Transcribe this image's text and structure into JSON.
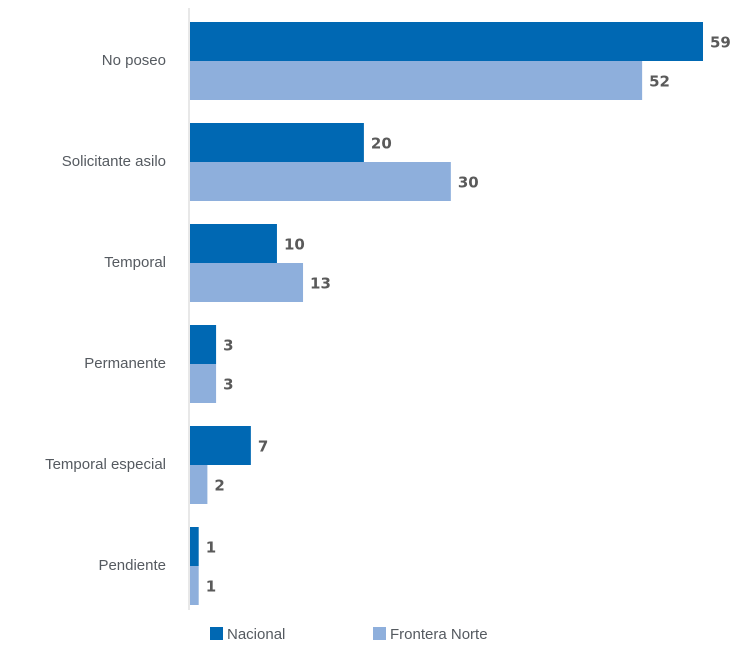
{
  "chart_data": {
    "type": "bar",
    "orientation": "horizontal",
    "categories": [
      "No poseo",
      "Solicitante asilo",
      "Temporal",
      "Permanente",
      "Temporal especial",
      "Pendiente"
    ],
    "series": [
      {
        "name": "Nacional",
        "values": [
          59,
          20,
          10,
          3,
          7,
          1
        ],
        "color": "#0068b3"
      },
      {
        "name": "Frontera Norte",
        "values": [
          52,
          30,
          13,
          3,
          2,
          1
        ],
        "color": "#8eafdc"
      }
    ],
    "title": "",
    "xlabel": "",
    "ylabel": "",
    "xlim": [
      0,
      60
    ],
    "grid": false,
    "legend": "bottom",
    "data_labels": true
  }
}
